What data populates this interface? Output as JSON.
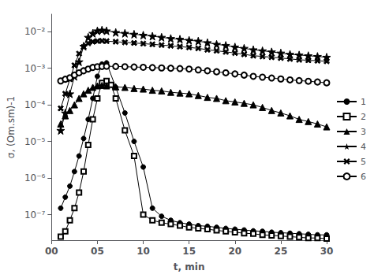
{
  "chart_data": {
    "type": "line",
    "xlabel": "t, min",
    "ylabel": "σ, (Om.sm)-1",
    "log": "y",
    "grid": false,
    "legend": "right",
    "xlim": [
      0,
      30
    ],
    "xticks": [
      {
        "value": 0,
        "label": "00"
      },
      {
        "value": 5,
        "label": "05"
      },
      10,
      15,
      20,
      25,
      30
    ],
    "ylim": [
      2e-08,
      0.03
    ],
    "yticks": [
      {
        "value": 1e-07,
        "label": "10⁻⁷"
      },
      {
        "value": 1e-06,
        "label": "10⁻⁶"
      },
      {
        "value": 1e-05,
        "label": "10⁻⁵"
      },
      {
        "value": 0.0001,
        "label": "10⁻⁴"
      },
      {
        "value": 0.001,
        "label": "10⁻³"
      },
      {
        "value": 0.01,
        "label": "10⁻²"
      }
    ],
    "series": [
      {
        "name": "1",
        "marker": "circle",
        "color": "#000000",
        "x": [
          1,
          1.5,
          2,
          2.5,
          3,
          3.5,
          4,
          4.5,
          5,
          5.5,
          6,
          7,
          8,
          9,
          10,
          11,
          12,
          13,
          14,
          15,
          16,
          17,
          18,
          19,
          20,
          21,
          22,
          23,
          24,
          25,
          26,
          27,
          28,
          29,
          30
        ],
        "values": [
          1.5e-07,
          3e-07,
          6e-07,
          1.5e-06,
          4e-06,
          1.2e-05,
          4e-05,
          0.00015,
          0.0006,
          0.0013,
          0.0014,
          0.0003,
          6e-05,
          1e-05,
          2e-06,
          1.5e-07,
          9e-08,
          7e-08,
          6e-08,
          5.5e-08,
          5e-08,
          4.8e-08,
          4.5e-08,
          4.2e-08,
          4e-08,
          3.8e-08,
          3.6e-08,
          3.5e-08,
          3.3e-08,
          3.2e-08,
          3.1e-08,
          3e-08,
          2.9e-08,
          2.8e-08,
          2.8e-08
        ]
      },
      {
        "name": "2",
        "marker": "open_square",
        "color": "#000000",
        "x": [
          1,
          1.5,
          2,
          2.5,
          3,
          3.5,
          4,
          4.5,
          5,
          5.5,
          6,
          6.5,
          7,
          8,
          9,
          10,
          11,
          12,
          13,
          14,
          15,
          16,
          17,
          18,
          19,
          20,
          21,
          22,
          23,
          24,
          25,
          26,
          27,
          28,
          29,
          30
        ],
        "values": [
          2.5e-08,
          3.5e-08,
          7e-08,
          1.5e-07,
          4e-07,
          1.5e-06,
          8e-06,
          4e-05,
          0.00015,
          0.0004,
          0.00045,
          0.00035,
          0.00015,
          2e-05,
          4e-06,
          1e-07,
          7e-08,
          6e-08,
          5.5e-08,
          5e-08,
          4.5e-08,
          4.2e-08,
          4e-08,
          3.7e-08,
          3.5e-08,
          3.3e-08,
          3.1e-08,
          3e-08,
          2.8e-08,
          2.7e-08,
          2.6e-08,
          2.5e-08,
          2.4e-08,
          2.3e-08,
          2.3e-08,
          2.2e-08
        ]
      },
      {
        "name": "3",
        "marker": "triangle",
        "color": "#000000",
        "x": [
          1,
          1.5,
          2,
          2.5,
          3,
          3.5,
          4,
          4.5,
          5,
          5.5,
          6,
          7,
          8,
          9,
          10,
          11,
          12,
          13,
          14,
          15,
          16,
          17,
          18,
          19,
          20,
          21,
          22,
          23,
          24,
          25,
          26,
          27,
          28,
          29,
          30
        ],
        "values": [
          3e-05,
          5e-05,
          7e-05,
          0.0001,
          0.00015,
          0.0002,
          0.00025,
          0.0003,
          0.00033,
          0.00034,
          0.00033,
          0.00031,
          0.0003,
          0.00028,
          0.00027,
          0.00025,
          0.00024,
          0.00022,
          0.00021,
          0.0002,
          0.00018,
          0.00016,
          0.00015,
          0.00013,
          0.00012,
          0.00011,
          0.0001,
          8.5e-05,
          7e-05,
          6e-05,
          5e-05,
          4e-05,
          3.5e-05,
          3e-05,
          2.5e-05
        ]
      },
      {
        "name": "4",
        "marker": "star",
        "color": "#000000",
        "x": [
          1,
          1.5,
          2,
          2.5,
          3,
          3.5,
          4,
          4.5,
          5,
          5.5,
          6,
          7,
          8,
          9,
          10,
          11,
          12,
          13,
          14,
          15,
          16,
          17,
          18,
          19,
          20,
          21,
          22,
          23,
          24,
          25,
          26,
          27,
          28,
          29,
          30
        ],
        "values": [
          2e-05,
          6e-05,
          0.0002,
          0.0006,
          0.0015,
          0.004,
          0.007,
          0.009,
          0.0105,
          0.011,
          0.0105,
          0.0095,
          0.009,
          0.0085,
          0.008,
          0.0075,
          0.007,
          0.0065,
          0.0062,
          0.0058,
          0.0055,
          0.005,
          0.0045,
          0.0042,
          0.0038,
          0.0035,
          0.0032,
          0.003,
          0.0028,
          0.0026,
          0.0024,
          0.0023,
          0.0022,
          0.0021,
          0.002
        ]
      },
      {
        "name": "5",
        "marker": "x",
        "color": "#000000",
        "x": [
          1,
          1.5,
          2,
          2.5,
          3,
          3.5,
          4,
          4.5,
          5,
          5.5,
          6,
          7,
          8,
          9,
          10,
          11,
          12,
          13,
          14,
          15,
          16,
          17,
          18,
          19,
          20,
          21,
          22,
          23,
          24,
          25,
          26,
          27,
          28,
          29,
          30
        ],
        "values": [
          8e-05,
          0.0002,
          0.0005,
          0.0012,
          0.0025,
          0.0038,
          0.0048,
          0.0053,
          0.0055,
          0.0056,
          0.0055,
          0.0053,
          0.0051,
          0.0049,
          0.0047,
          0.0045,
          0.0043,
          0.0041,
          0.0039,
          0.0037,
          0.0035,
          0.0032,
          0.003,
          0.0028,
          0.0026,
          0.0024,
          0.0022,
          0.0021,
          0.002,
          0.0019,
          0.0018,
          0.0017,
          0.00165,
          0.0016,
          0.00155
        ]
      },
      {
        "name": "6",
        "marker": "open_circle",
        "color": "#000000",
        "x": [
          1,
          1.5,
          2,
          2.5,
          3,
          3.5,
          4,
          4.5,
          5,
          5.5,
          6,
          7,
          8,
          9,
          10,
          11,
          12,
          13,
          14,
          15,
          16,
          17,
          18,
          19,
          20,
          21,
          22,
          23,
          24,
          25,
          26,
          27,
          28,
          29,
          30
        ],
        "values": [
          0.00045,
          0.0005,
          0.00055,
          0.00065,
          0.00075,
          0.00085,
          0.00095,
          0.00105,
          0.0011,
          0.00112,
          0.00113,
          0.00112,
          0.0011,
          0.00108,
          0.00106,
          0.00104,
          0.00102,
          0.001,
          0.00098,
          0.00095,
          0.0009,
          0.00085,
          0.0008,
          0.00075,
          0.0007,
          0.00065,
          0.0006,
          0.00057,
          0.00054,
          0.00051,
          0.00048,
          0.00046,
          0.00044,
          0.00042,
          0.0004
        ]
      }
    ]
  }
}
